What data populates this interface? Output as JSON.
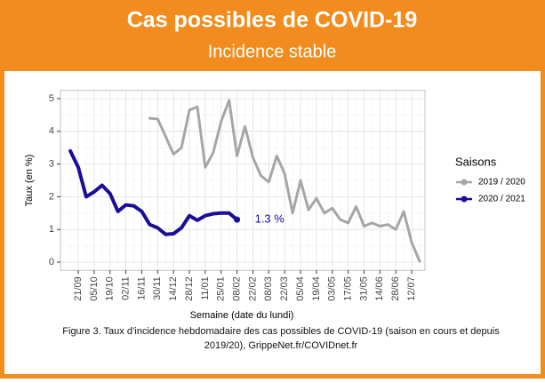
{
  "chart_data": {
    "type": "line",
    "title": "Cas possibles de COVID-19",
    "subtitle": "Incidence stable",
    "caption": [
      "Figure 3. Taux d’incidence hebdomadaire des cas possibles de COVID-19 (saison en cours et depuis",
      "2019/20), GrippeNet.fr/COVIDnet.fr"
    ],
    "x_label": "Semaine (date du lundi)",
    "y_label": "Taux (en %)",
    "legend_title": "Saisons",
    "annotation": "1.3 %",
    "categories": [
      null,
      "21/09",
      null,
      "05/10",
      null,
      "19/10",
      null,
      "02/11",
      null,
      "16/11",
      null,
      "30/11",
      null,
      "14/12",
      null,
      "28/12",
      null,
      "11/01",
      null,
      "25/01",
      null,
      "08/02",
      null,
      "22/02",
      null,
      "08/03",
      null,
      "22/03",
      null,
      "05/04",
      null,
      "19/04",
      null,
      "03/05",
      null,
      "17/05",
      null,
      "31/05",
      null,
      "14/06",
      null,
      "28/06",
      null,
      "12/07",
      null
    ],
    "series": [
      {
        "name": "2019 / 2020",
        "color": "#a6a6a6",
        "values": [
          null,
          null,
          null,
          null,
          null,
          null,
          null,
          null,
          null,
          null,
          4.4,
          4.38,
          3.85,
          3.3,
          3.5,
          4.65,
          4.75,
          2.9,
          3.35,
          4.3,
          4.95,
          3.25,
          4.15,
          3.2,
          2.65,
          2.45,
          3.25,
          2.7,
          1.5,
          2.5,
          1.6,
          1.95,
          1.5,
          1.65,
          1.3,
          1.2,
          1.7,
          1.1,
          1.2,
          1.1,
          1.15,
          1.0,
          1.55,
          0.6,
          0.03
        ]
      },
      {
        "name": "2020 / 2021",
        "color": "#1a0d99",
        "values": [
          3.4,
          2.9,
          2.0,
          2.15,
          2.35,
          2.1,
          1.55,
          1.75,
          1.72,
          1.55,
          1.15,
          1.05,
          0.85,
          0.87,
          1.05,
          1.42,
          1.28,
          1.42,
          1.48,
          1.5,
          1.5,
          1.3,
          null,
          null,
          null,
          null,
          null,
          null,
          null,
          null,
          null,
          null,
          null,
          null,
          null,
          null,
          null,
          null,
          null,
          null,
          null,
          null,
          null,
          null,
          null
        ]
      }
    ],
    "ylim": [
      -0.25,
      5.25
    ],
    "yticks": [
      0,
      1,
      2,
      3,
      4,
      5
    ],
    "grid": true,
    "legend": "right"
  }
}
